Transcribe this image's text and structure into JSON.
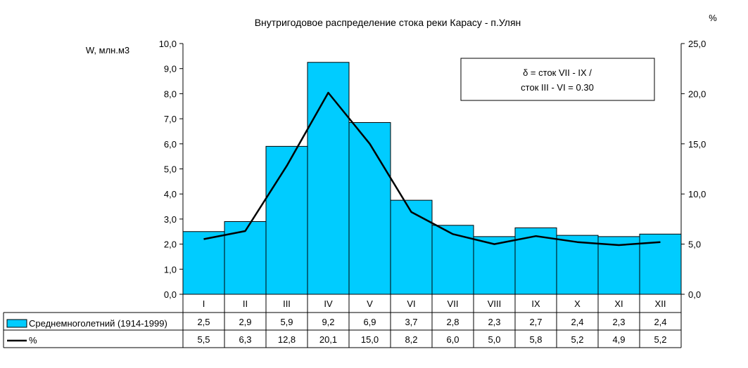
{
  "chart_data": {
    "type": "bar",
    "title": "Внутригодовое распределение стока реки Карасу - п.Улян",
    "ylabel": "W, млн.м3",
    "y2label": "%",
    "categories": [
      "I",
      "II",
      "III",
      "IV",
      "V",
      "VI",
      "VII",
      "VIII",
      "IX",
      "X",
      "XI",
      "XII"
    ],
    "ylim": [
      0,
      10
    ],
    "y2lim": [
      0,
      25
    ],
    "yticks": [
      "0,0",
      "1,0",
      "2,0",
      "3,0",
      "4,0",
      "5,0",
      "6,0",
      "7,0",
      "8,0",
      "9,0",
      "10,0"
    ],
    "y2ticks": [
      "0,0",
      "5,0",
      "10,0",
      "15,0",
      "20,0",
      "25,0"
    ],
    "series": [
      {
        "name": "Среднемноголетний (1914-1999)",
        "kind": "bar",
        "axis": "left",
        "color": "#00ccff",
        "values": [
          2.5,
          2.9,
          5.9,
          9.25,
          6.85,
          3.75,
          2.75,
          2.3,
          2.65,
          2.35,
          2.3,
          2.4
        ],
        "labels": [
          "2,5",
          "2,9",
          "5,9",
          "9,2",
          "6,9",
          "3,7",
          "2,8",
          "2,3",
          "2,7",
          "2,4",
          "2,3",
          "2,4"
        ]
      },
      {
        "name": "%",
        "kind": "line",
        "axis": "right",
        "color": "#000000",
        "values": [
          5.5,
          6.3,
          12.8,
          20.1,
          15.0,
          8.2,
          6.0,
          5.0,
          5.8,
          5.2,
          4.9,
          5.2
        ],
        "labels": [
          "5,5",
          "6,3",
          "12,8",
          "20,1",
          "15,0",
          "8,2",
          "6,0",
          "5,0",
          "5,8",
          "5,2",
          "4,9",
          "5,2"
        ]
      }
    ],
    "annotation": [
      "δ = сток VII - IX /",
      "сток III - VI = 0.30"
    ],
    "grid": false,
    "legend": "data-table-below"
  }
}
